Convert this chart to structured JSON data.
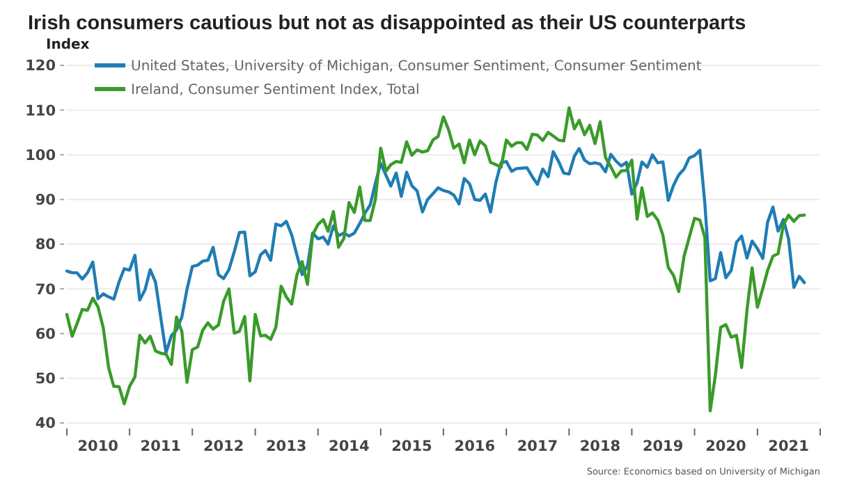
{
  "chart_data": {
    "type": "line",
    "title": "Irish consumers cautious but not as disappointed as their US counterparts",
    "ylabel": "Index",
    "annotations": [
      "Source: Economics based on University of Michigan"
    ],
    "x": [
      "2010-01",
      "2010-02",
      "2010-03",
      "2010-04",
      "2010-05",
      "2010-06",
      "2010-07",
      "2010-08",
      "2010-09",
      "2010-10",
      "2010-11",
      "2010-12",
      "2011-01",
      "2011-02",
      "2011-03",
      "2011-04",
      "2011-05",
      "2011-06",
      "2011-07",
      "2011-08",
      "2011-09",
      "2011-10",
      "2011-11",
      "2011-12",
      "2012-01",
      "2012-02",
      "2012-03",
      "2012-04",
      "2012-05",
      "2012-06",
      "2012-07",
      "2012-08",
      "2012-09",
      "2012-10",
      "2012-11",
      "2012-12",
      "2013-01",
      "2013-02",
      "2013-03",
      "2013-04",
      "2013-05",
      "2013-06",
      "2013-07",
      "2013-08",
      "2013-09",
      "2013-10",
      "2013-11",
      "2013-12",
      "2014-01",
      "2014-02",
      "2014-03",
      "2014-04",
      "2014-05",
      "2014-06",
      "2014-07",
      "2014-08",
      "2014-09",
      "2014-10",
      "2014-11",
      "2014-12",
      "2015-01",
      "2015-02",
      "2015-03",
      "2015-04",
      "2015-05",
      "2015-06",
      "2015-07",
      "2015-08",
      "2015-09",
      "2015-10",
      "2015-11",
      "2015-12",
      "2016-01",
      "2016-02",
      "2016-03",
      "2016-04",
      "2016-05",
      "2016-06",
      "2016-07",
      "2016-08",
      "2016-09",
      "2016-10",
      "2016-11",
      "2016-12",
      "2017-01",
      "2017-02",
      "2017-03",
      "2017-04",
      "2017-05",
      "2017-06",
      "2017-07",
      "2017-08",
      "2017-09",
      "2017-10",
      "2017-11",
      "2017-12",
      "2018-01",
      "2018-02",
      "2018-03",
      "2018-04",
      "2018-05",
      "2018-06",
      "2018-07",
      "2018-08",
      "2018-09",
      "2018-10",
      "2018-11",
      "2018-12",
      "2019-01",
      "2019-02",
      "2019-03",
      "2019-04",
      "2019-05",
      "2019-06",
      "2019-07",
      "2019-08",
      "2019-09",
      "2019-10",
      "2019-11",
      "2019-12",
      "2020-01",
      "2020-02",
      "2020-03",
      "2020-04",
      "2020-05",
      "2020-06",
      "2020-07",
      "2020-08",
      "2020-09",
      "2020-10",
      "2020-11",
      "2020-12",
      "2021-01",
      "2021-02",
      "2021-03",
      "2021-04",
      "2021-05",
      "2021-06",
      "2021-07",
      "2021-08",
      "2021-09",
      "2021-10"
    ],
    "xlim": [
      "2010-01",
      "2022-01"
    ],
    "xticks": [
      {
        "value": "2010-01",
        "label": null
      },
      {
        "value": "2010-07",
        "label": "2010"
      },
      {
        "value": "2011-01",
        "label": null
      },
      {
        "value": "2011-07",
        "label": "2011"
      },
      {
        "value": "2012-01",
        "label": null
      },
      {
        "value": "2012-07",
        "label": "2012"
      },
      {
        "value": "2013-01",
        "label": null
      },
      {
        "value": "2013-07",
        "label": "2013"
      },
      {
        "value": "2014-01",
        "label": null
      },
      {
        "value": "2014-07",
        "label": "2014"
      },
      {
        "value": "2015-01",
        "label": null
      },
      {
        "value": "2015-07",
        "label": "2015"
      },
      {
        "value": "2016-01",
        "label": null
      },
      {
        "value": "2016-07",
        "label": "2016"
      },
      {
        "value": "2017-01",
        "label": null
      },
      {
        "value": "2017-07",
        "label": "2017"
      },
      {
        "value": "2018-01",
        "label": null
      },
      {
        "value": "2018-07",
        "label": "2018"
      },
      {
        "value": "2019-01",
        "label": null
      },
      {
        "value": "2019-07",
        "label": "2019"
      },
      {
        "value": "2020-01",
        "label": null
      },
      {
        "value": "2020-07",
        "label": "2020"
      },
      {
        "value": "2021-01",
        "label": null
      },
      {
        "value": "2021-07",
        "label": "2021"
      },
      {
        "value": "2022-01",
        "label": null
      }
    ],
    "ylim": [
      40,
      120
    ],
    "yticks": [
      40,
      50,
      60,
      70,
      80,
      90,
      100,
      110,
      120
    ],
    "grid": "y",
    "legend": "top left",
    "line_style": "solid",
    "series": [
      {
        "name": "United States, University of Michigan, Consumer Sentiment, Consumer Sentiment",
        "color": "#1f7db3",
        "values": [
          74,
          73.6,
          73.6,
          72.2,
          73.6,
          76,
          67.8,
          68.9,
          68.2,
          67.7,
          71.6,
          74.5,
          74.2,
          77.5,
          67.5,
          69.8,
          74.3,
          71.5,
          63.7,
          55.7,
          59.5,
          60.8,
          63.7,
          69.9,
          75,
          75.3,
          76.2,
          76.4,
          79.3,
          73.2,
          72.3,
          74.3,
          78.3,
          82.6,
          82.7,
          72.9,
          73.8,
          77.6,
          78.6,
          76.4,
          84.5,
          84.1,
          85.1,
          82.1,
          77.5,
          73.2,
          75.1,
          82.5,
          81.2,
          81.6,
          80,
          84.1,
          81.9,
          82.5,
          81.8,
          82.5,
          84.6,
          86.9,
          88.8,
          93.6,
          98.1,
          95.4,
          93,
          95.9,
          90.7,
          96.1,
          93.1,
          91.9,
          87.2,
          90,
          91.3,
          92.6,
          92,
          91.7,
          91,
          89,
          94.7,
          93.5,
          90,
          89.8,
          91.2,
          87.2,
          93.8,
          98.2,
          98.5,
          96.3,
          96.9,
          97,
          97.1,
          95.1,
          93.4,
          96.8,
          95.1,
          100.7,
          98.5,
          95.9,
          95.7,
          99.7,
          101.4,
          98.8,
          98,
          98.2,
          97.9,
          96.2,
          100.1,
          98.6,
          97.5,
          98.3,
          91.2,
          93.8,
          98.4,
          97.2,
          100,
          98.2,
          98.4,
          89.8,
          93.2,
          95.5,
          96.8,
          99.3,
          99.8,
          101,
          89.1,
          71.8,
          72.3,
          78.1,
          72.5,
          74.1,
          80.4,
          81.8,
          76.9,
          80.7,
          79,
          76.8,
          84.9,
          88.3,
          82.9,
          85.5,
          81.2,
          70.3,
          72.8,
          71.4
        ]
      },
      {
        "name": "Ireland, Consumer Sentiment Index, Total",
        "color": "#3a9a2a",
        "values": [
          64.3,
          59.4,
          62.2,
          65.4,
          65.2,
          67.9,
          66,
          61.3,
          52.4,
          48.2,
          48.1,
          44.3,
          48.2,
          50.3,
          59.6,
          57.9,
          59.4,
          56.1,
          55.6,
          55.4,
          53.1,
          63.7,
          60.5,
          49.1,
          56.4,
          57,
          60.7,
          62.4,
          61,
          61.9,
          67.2,
          70,
          60.1,
          60.5,
          63.8,
          49.4,
          64.3,
          59.5,
          59.6,
          58.7,
          61.4,
          70.6,
          68.2,
          66.6,
          73.2,
          76.1,
          71,
          82.1,
          84.4,
          85.5,
          82.9,
          87.3,
          79.3,
          81.3,
          89.3,
          87.1,
          92.8,
          85.3,
          85.3,
          90,
          101.5,
          96.3,
          97.8,
          98.5,
          98.3,
          102.9,
          99.9,
          101.1,
          100.6,
          100.9,
          103.3,
          104.1,
          108.5,
          105.5,
          101.5,
          102.4,
          98.2,
          103.3,
          100,
          103.1,
          102,
          98.3,
          97.8,
          97.2,
          103.3,
          101.9,
          102.7,
          102.7,
          101.2,
          104.6,
          104.4,
          103.2,
          105,
          104.2,
          103.3,
          103.1,
          110.5,
          105.8,
          107.7,
          104.5,
          106.6,
          102.5,
          107.4,
          99.4,
          97.3,
          95,
          96.4,
          96.5,
          98.8,
          85.6,
          92.6,
          86.2,
          87,
          85.4,
          82,
          74.8,
          73,
          69.4,
          77.3,
          81.5,
          85.8,
          85.4,
          81.5,
          42.7,
          50.6,
          61.4,
          62,
          59.2,
          59.6,
          52.4,
          65.2,
          74.7,
          65.9,
          70.1,
          74.1,
          77.3,
          77.9,
          84.3,
          86.5,
          85.1,
          86.4,
          86.5
        ]
      }
    ]
  }
}
